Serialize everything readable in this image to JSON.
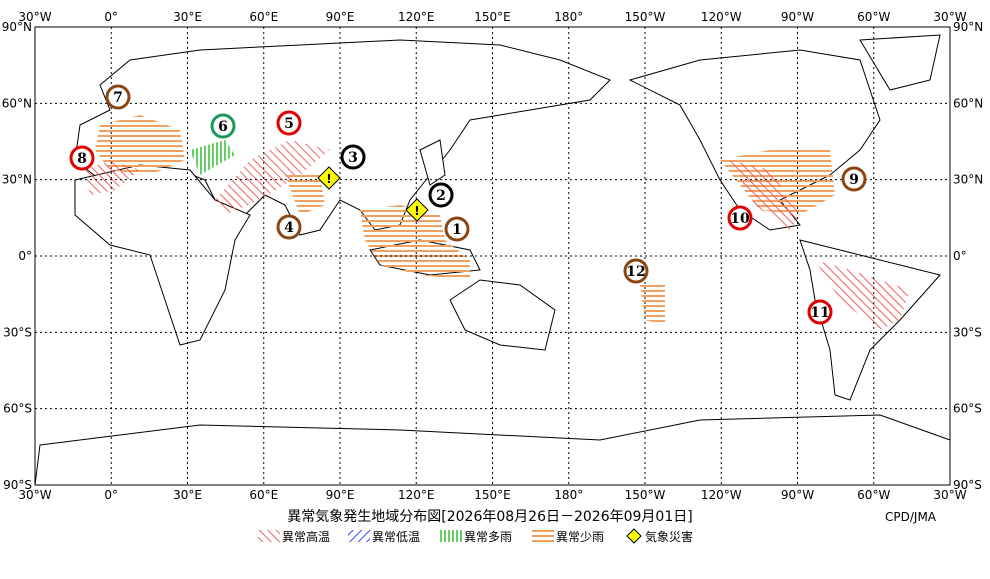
{
  "map": {
    "top_labels": [
      "30°W",
      "0°",
      "30°E",
      "60°E",
      "90°E",
      "120°E",
      "150°E",
      "180°",
      "150°W",
      "120°W",
      "90°W",
      "60°W",
      "30°W"
    ],
    "bottom_labels": [
      "30°W",
      "0°",
      "30°E",
      "60°E",
      "90°E",
      "120°E",
      "150°E",
      "180°",
      "150°W",
      "120°W",
      "90°W",
      "60°W",
      "30°W"
    ],
    "left_labels": [
      "90°N",
      "60°N",
      "30°N",
      "0°",
      "30°S",
      "60°S",
      "90°S"
    ],
    "right_labels": [
      "90°N",
      "60°N",
      "30°N",
      "0°",
      "30°S",
      "60°S",
      "90°S"
    ],
    "markers": [
      {
        "label": "1",
        "kind": "brown"
      },
      {
        "label": "2",
        "kind": "black"
      },
      {
        "label": "3",
        "kind": "black"
      },
      {
        "label": "4",
        "kind": "brown"
      },
      {
        "label": "5",
        "kind": "red"
      },
      {
        "label": "6",
        "kind": "green"
      },
      {
        "label": "7",
        "kind": "brown"
      },
      {
        "label": "8",
        "kind": "red"
      },
      {
        "label": "9",
        "kind": "brown"
      },
      {
        "label": "10",
        "kind": "red"
      },
      {
        "label": "11",
        "kind": "red"
      },
      {
        "label": "12",
        "kind": "brown"
      }
    ],
    "warnings": [
      "!",
      "!"
    ],
    "title": "異常気象発生地域分布図[2026年08月26日－2026年09月01日]",
    "credit": "CPD/JMA",
    "legend": [
      "異常高温",
      "異常低温",
      "異常多雨",
      "異常少雨",
      "気象災害"
    ]
  }
}
